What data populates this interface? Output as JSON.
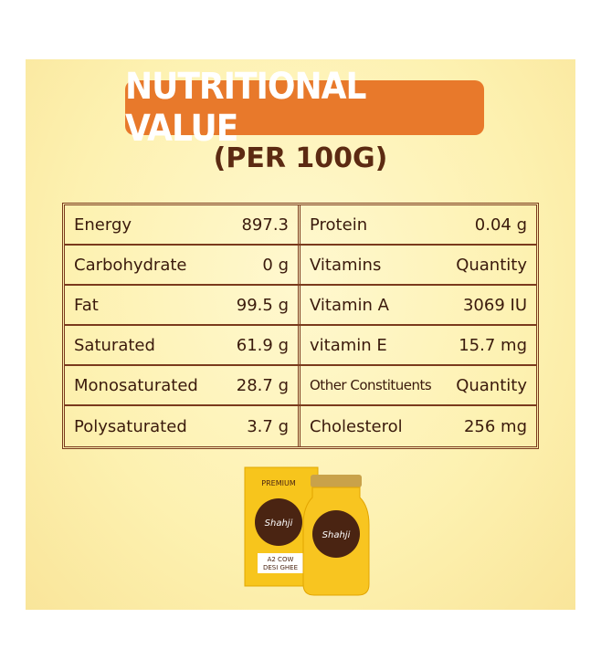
{
  "header": {
    "title": "NUTRITIONAL VALUE",
    "subtitle": "(PER 100G)"
  },
  "table": {
    "rows": [
      [
        "Energy",
        "897.3",
        "Protein",
        "0.04 g"
      ],
      [
        "Carbohydrate",
        "0 g",
        "Vitamins",
        "Quantity"
      ],
      [
        "Fat",
        "99.5 g",
        "Vitamin A",
        "3069 IU"
      ],
      [
        "Saturated",
        "61.9 g",
        "vitamin E",
        "15.7 mg"
      ],
      [
        "Monosaturated",
        "28.7 g",
        "Other Constituents",
        "Quantity"
      ],
      [
        "Polysaturated",
        "3.7 g",
        "Cholesterol",
        "256 mg"
      ]
    ]
  },
  "product": {
    "badge": "PREMIUM",
    "brand": "Shahji",
    "name_line1": "A2 COW",
    "name_line2": "DESI GHEE",
    "jar_brand": "Shahji"
  }
}
